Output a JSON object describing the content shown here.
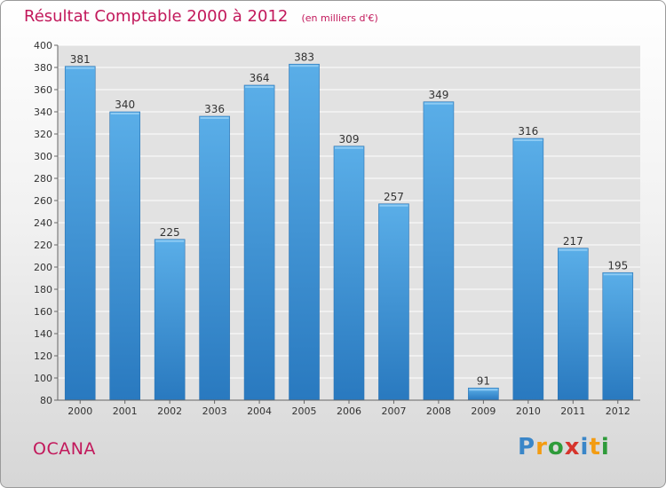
{
  "title": "Résultat Comptable 2000 à 2012",
  "unit_note": "(en milliers d'€)",
  "commune": "OCANA",
  "logo": {
    "letters": [
      "P",
      "r",
      "o",
      "x",
      "i",
      "t",
      "i"
    ],
    "colors": [
      "#3a86c8",
      "#f39c12",
      "#2e9b3a",
      "#d6342c",
      "#3a86c8",
      "#f39c12",
      "#2e9b3a"
    ]
  },
  "colors": {
    "bar_light": "#5aaee8",
    "bar_dark": "#2979bf",
    "title": "#c2185b"
  },
  "chart_data": {
    "type": "bar",
    "title": "Résultat Comptable 2000 à 2012",
    "categories": [
      "2000",
      "2001",
      "2002",
      "2003",
      "2004",
      "2005",
      "2006",
      "2007",
      "2008",
      "2009",
      "2010",
      "2011",
      "2012"
    ],
    "values": [
      381,
      340,
      225,
      336,
      364,
      383,
      309,
      257,
      349,
      91,
      316,
      217,
      195
    ],
    "ylim": [
      80,
      400
    ],
    "yticks": [
      80,
      100,
      120,
      140,
      160,
      180,
      200,
      220,
      240,
      260,
      280,
      300,
      320,
      340,
      360,
      380,
      400
    ],
    "grid": true,
    "legend": "none"
  }
}
